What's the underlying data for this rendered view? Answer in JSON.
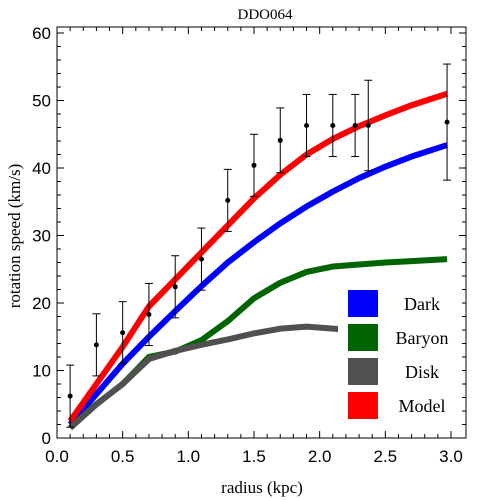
{
  "chart_data": {
    "type": "line",
    "title": "DDO064",
    "xlabel": "radius (kpc)",
    "ylabel": "rotation speed (km/s)",
    "xlim": [
      0.0,
      3.1
    ],
    "ylim": [
      0,
      62
    ],
    "x_ticks": [
      "0.0",
      "0.5",
      "1.0",
      "1.5",
      "2.0",
      "2.5",
      "3.0"
    ],
    "x_tick_values": [
      0.0,
      0.5,
      1.0,
      1.5,
      2.0,
      2.5,
      3.0
    ],
    "y_ticks": [
      "0",
      "10",
      "20",
      "30",
      "40",
      "50",
      "60"
    ],
    "y_tick_values": [
      0,
      10,
      20,
      30,
      40,
      50,
      60
    ],
    "grid": false,
    "legend_position": "bottom-right",
    "series": [
      {
        "name": "Dark",
        "color": "#0000ff",
        "x": [
          0.1,
          0.3,
          0.5,
          0.7,
          0.9,
          1.1,
          1.3,
          1.5,
          1.7,
          1.9,
          2.1,
          2.3,
          2.5,
          2.7,
          2.97
        ],
        "y": [
          2.0,
          6.5,
          11.0,
          15.0,
          18.8,
          22.5,
          26.0,
          29.0,
          31.8,
          34.3,
          36.5,
          38.5,
          40.2,
          41.7,
          43.4
        ]
      },
      {
        "name": "Baryon",
        "color": "#006400",
        "x": [
          0.1,
          0.3,
          0.5,
          0.7,
          0.9,
          1.1,
          1.3,
          1.5,
          1.7,
          1.9,
          2.1,
          2.3,
          2.5,
          2.7,
          2.97
        ],
        "y": [
          1.5,
          5.0,
          8.0,
          12.0,
          12.8,
          14.5,
          17.3,
          20.7,
          23.0,
          24.6,
          25.4,
          25.7,
          26.0,
          26.2,
          26.5
        ]
      },
      {
        "name": "Disk",
        "color": "#505050",
        "x": [
          0.1,
          0.3,
          0.5,
          0.7,
          0.9,
          1.1,
          1.3,
          1.5,
          1.7,
          1.9,
          2.1,
          2.3
        ],
        "y": [
          1.5,
          5.0,
          8.0,
          11.7,
          12.9,
          13.8,
          14.6,
          15.5,
          16.2,
          16.5,
          16.2,
          15.9
        ]
      },
      {
        "name": "Model",
        "color": "#ff0000",
        "x": [
          0.1,
          0.3,
          0.5,
          0.7,
          0.9,
          1.1,
          1.3,
          1.5,
          1.7,
          1.9,
          2.1,
          2.3,
          2.5,
          2.7,
          2.97
        ],
        "y": [
          2.5,
          8.0,
          13.5,
          19.5,
          23.5,
          27.5,
          31.5,
          35.5,
          39.0,
          42.0,
          44.3,
          46.2,
          47.8,
          49.3,
          51.0
        ]
      }
    ],
    "observations": {
      "name": "data",
      "color": "#000000",
      "points": [
        {
          "x": 0.1,
          "y": 6.2,
          "err": 4.6
        },
        {
          "x": 0.3,
          "y": 13.8,
          "err": 4.6
        },
        {
          "x": 0.5,
          "y": 15.6,
          "err": 4.6
        },
        {
          "x": 0.7,
          "y": 18.3,
          "err": 4.6
        },
        {
          "x": 0.9,
          "y": 22.4,
          "err": 4.6
        },
        {
          "x": 1.1,
          "y": 26.5,
          "err": 4.6
        },
        {
          "x": 1.3,
          "y": 35.2,
          "err": 4.6
        },
        {
          "x": 1.5,
          "y": 40.4,
          "err": 4.6
        },
        {
          "x": 1.7,
          "y": 44.1,
          "err": 4.8
        },
        {
          "x": 1.9,
          "y": 46.3,
          "err": 4.6
        },
        {
          "x": 2.1,
          "y": 46.3,
          "err": 4.6
        },
        {
          "x": 2.27,
          "y": 46.3,
          "err": 4.6
        },
        {
          "x": 2.37,
          "y": 46.3,
          "err": 6.7
        },
        {
          "x": 2.97,
          "y": 46.8,
          "err": 8.6
        }
      ]
    }
  }
}
